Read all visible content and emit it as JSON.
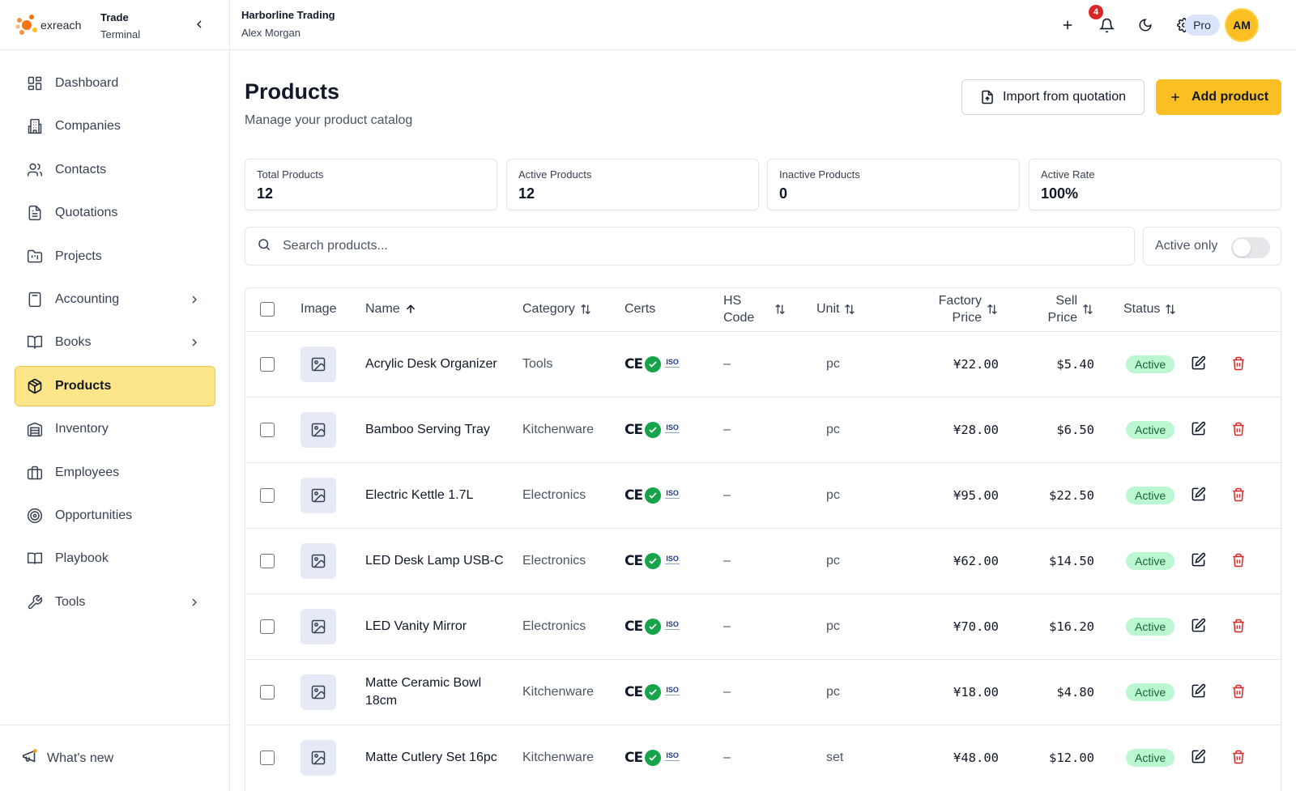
{
  "brand": {
    "logo_text": "exreach",
    "title": "Trade",
    "subtitle": "Terminal"
  },
  "sidebar": {
    "items": [
      {
        "label": "Dashboard",
        "icon": "layout-dashboard-icon",
        "has_chevron": false,
        "active": false
      },
      {
        "label": "Companies",
        "icon": "building-icon",
        "has_chevron": false,
        "active": false
      },
      {
        "label": "Contacts",
        "icon": "users-icon",
        "has_chevron": false,
        "active": false
      },
      {
        "label": "Quotations",
        "icon": "file-text-icon",
        "has_chevron": false,
        "active": false
      },
      {
        "label": "Projects",
        "icon": "folder-kanban-icon",
        "has_chevron": false,
        "active": false
      },
      {
        "label": "Accounting",
        "icon": "calculator-icon",
        "has_chevron": true,
        "active": false
      },
      {
        "label": "Books",
        "icon": "book-open-icon",
        "has_chevron": true,
        "active": false
      },
      {
        "label": "Products",
        "icon": "package-icon",
        "has_chevron": false,
        "active": true
      },
      {
        "label": "Inventory",
        "icon": "warehouse-icon",
        "has_chevron": false,
        "active": false
      },
      {
        "label": "Employees",
        "icon": "briefcase-icon",
        "has_chevron": false,
        "active": false
      },
      {
        "label": "Opportunities",
        "icon": "target-icon",
        "has_chevron": false,
        "active": false
      },
      {
        "label": "Playbook",
        "icon": "book-icon",
        "has_chevron": false,
        "active": false
      },
      {
        "label": "Tools",
        "icon": "wrench-icon",
        "has_chevron": true,
        "active": false
      }
    ],
    "footer_label": "What's new"
  },
  "topbar": {
    "company": "Harborline Trading",
    "user": "Alex Morgan",
    "notifications_count": "4",
    "plan": "Pro",
    "avatar_initials": "AM"
  },
  "page": {
    "title": "Products",
    "subtitle": "Manage your product catalog",
    "import_label": "Import from quotation",
    "add_label": "Add product"
  },
  "stats": [
    {
      "label": "Total Products",
      "value": "12"
    },
    {
      "label": "Active Products",
      "value": "12"
    },
    {
      "label": "Inactive Products",
      "value": "0"
    },
    {
      "label": "Active Rate",
      "value": "100%"
    }
  ],
  "search": {
    "placeholder": "Search products...",
    "active_only_label": "Active only",
    "active_only_on": false
  },
  "table": {
    "columns": {
      "image": "Image",
      "name": "Name",
      "category": "Category",
      "certs": "Certs",
      "hs_code": "HS Code",
      "unit": "Unit",
      "factory_price": "Factory Price",
      "sell_price": "Sell Price",
      "status": "Status"
    },
    "cert_labels": {
      "ce": "CE",
      "iso": "ISO"
    },
    "rows": [
      {
        "name": "Acrylic Desk Organizer",
        "category": "Tools",
        "hs_code": "–",
        "unit": "pc",
        "factory_price": "¥22.00",
        "sell_price": "$5.40",
        "status": "Active"
      },
      {
        "name": "Bamboo Serving Tray",
        "category": "Kitchenware",
        "hs_code": "–",
        "unit": "pc",
        "factory_price": "¥28.00",
        "sell_price": "$6.50",
        "status": "Active"
      },
      {
        "name": "Electric Kettle 1.7L",
        "category": "Electronics",
        "hs_code": "–",
        "unit": "pc",
        "factory_price": "¥95.00",
        "sell_price": "$22.50",
        "status": "Active"
      },
      {
        "name": "LED Desk Lamp USB-C",
        "category": "Electronics",
        "hs_code": "–",
        "unit": "pc",
        "factory_price": "¥62.00",
        "sell_price": "$14.50",
        "status": "Active"
      },
      {
        "name": "LED Vanity Mirror",
        "category": "Electronics",
        "hs_code": "–",
        "unit": "pc",
        "factory_price": "¥70.00",
        "sell_price": "$16.20",
        "status": "Active"
      },
      {
        "name": "Matte Ceramic Bowl 18cm",
        "category": "Kitchenware",
        "hs_code": "–",
        "unit": "pc",
        "factory_price": "¥18.00",
        "sell_price": "$4.80",
        "status": "Active"
      },
      {
        "name": "Matte Cutlery Set 16pc",
        "category": "Kitchenware",
        "hs_code": "–",
        "unit": "set",
        "factory_price": "¥48.00",
        "sell_price": "$12.00",
        "status": "Active"
      }
    ]
  },
  "colors": {
    "accent": "#fbbf24",
    "active_nav_bg": "#fde68a",
    "status_active_bg": "#bbf7d0",
    "status_active_text": "#166534",
    "delete_red": "#dc2626",
    "badge_red": "#dc2626"
  }
}
